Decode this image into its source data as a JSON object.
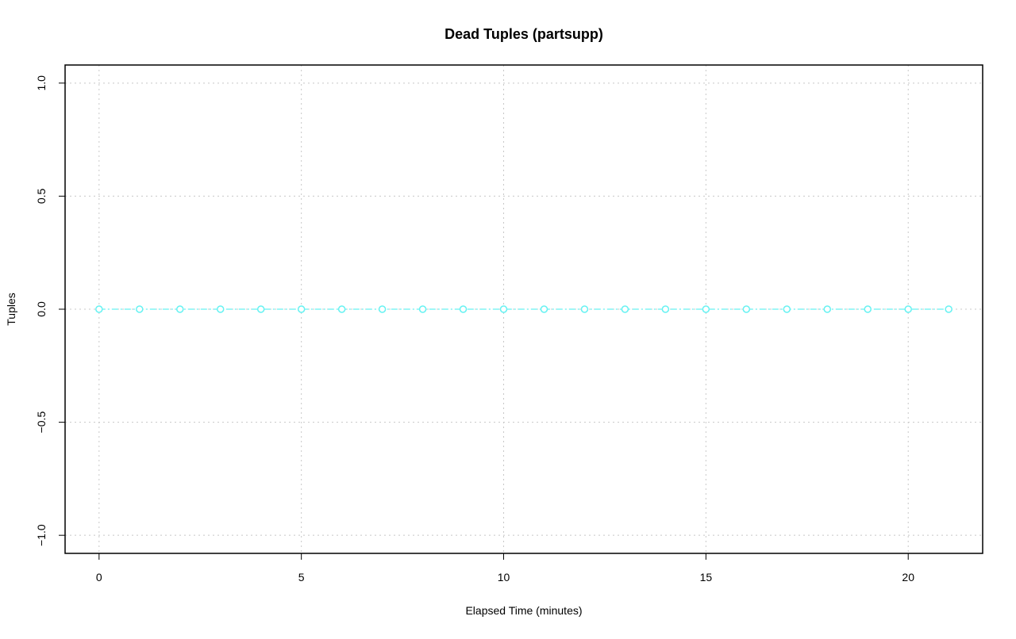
{
  "chart_data": {
    "type": "line",
    "title": "Dead Tuples (partsupp)",
    "xlabel": "Elapsed Time (minutes)",
    "ylabel": "Tuples",
    "x": [
      0,
      1,
      2,
      3,
      4,
      5,
      6,
      7,
      8,
      9,
      10,
      11,
      12,
      13,
      14,
      15,
      16,
      17,
      18,
      19,
      20,
      21
    ],
    "series": [
      {
        "color": "#66f2f2",
        "values": [
          0,
          0,
          0,
          0,
          0,
          0,
          0,
          0,
          0,
          0,
          0,
          0,
          0,
          0,
          0,
          0,
          0,
          0,
          0,
          0,
          0,
          0
        ]
      }
    ],
    "xlim": [
      -0.84,
      21.84
    ],
    "xticks": [
      0,
      5,
      10,
      15,
      20
    ],
    "ylim": [
      -1.08,
      1.08
    ],
    "yticks": [
      {
        "value": -1,
        "label": "−1.0"
      },
      {
        "value": -0.5,
        "label": "−0.5"
      },
      {
        "value": 0,
        "label": "0.0"
      },
      0.5,
      {
        "value": 1,
        "label": "1.0"
      }
    ],
    "grid": true
  }
}
